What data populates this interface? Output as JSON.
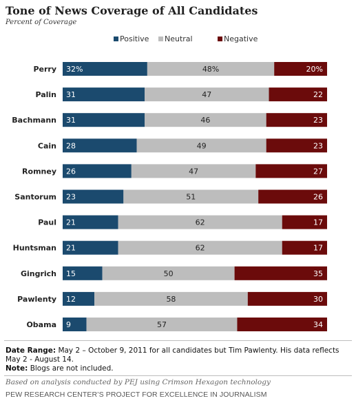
{
  "chart_data": {
    "type": "bar",
    "stacked": true,
    "orientation": "horizontal",
    "title": "Tone of News Coverage of All Candidates",
    "subtitle": "Percent of Coverage",
    "legend_position": "top",
    "categories": [
      "Perry",
      "Palin",
      "Bachmann",
      "Cain",
      "Romney",
      "Santorum",
      "Paul",
      "Huntsman",
      "Gingrich",
      "Pawlenty",
      "Obama"
    ],
    "series": [
      {
        "name": "Positive",
        "color": "#1b4a6e",
        "values": [
          32,
          31,
          31,
          28,
          26,
          23,
          21,
          21,
          15,
          12,
          9
        ],
        "labels": [
          "32%",
          "31",
          "31",
          "28",
          "26",
          "23",
          "21",
          "21",
          "15",
          "12",
          "9"
        ]
      },
      {
        "name": "Neutral",
        "color": "#bdbdbd",
        "values": [
          48,
          47,
          46,
          49,
          47,
          51,
          62,
          62,
          50,
          58,
          57
        ],
        "labels": [
          "48%",
          "47",
          "46",
          "49",
          "47",
          "51",
          "62",
          "62",
          "50",
          "58",
          "57"
        ]
      },
      {
        "name": "Negative",
        "color": "#6b0b0b",
        "values": [
          20,
          22,
          23,
          23,
          27,
          26,
          17,
          17,
          35,
          30,
          34
        ],
        "labels": [
          "20%",
          "22",
          "23",
          "23",
          "27",
          "26",
          "17",
          "17",
          "35",
          "30",
          "34"
        ]
      }
    ]
  },
  "notes": {
    "date_range_label": "Date Range:",
    "date_range_text": "May 2 – October 9, 2011 for all candidates but Tim Pawlenty. His data reflects May 2 - August 14.",
    "note_label": "Note:",
    "note_text": "Blogs are not included."
  },
  "source": "Based on analysis conducted by PEJ using Crimson Hexagon technology",
  "org": "PEW RESEARCH CENTER’S PROJECT FOR EXCELLENCE IN JOURNALISM"
}
